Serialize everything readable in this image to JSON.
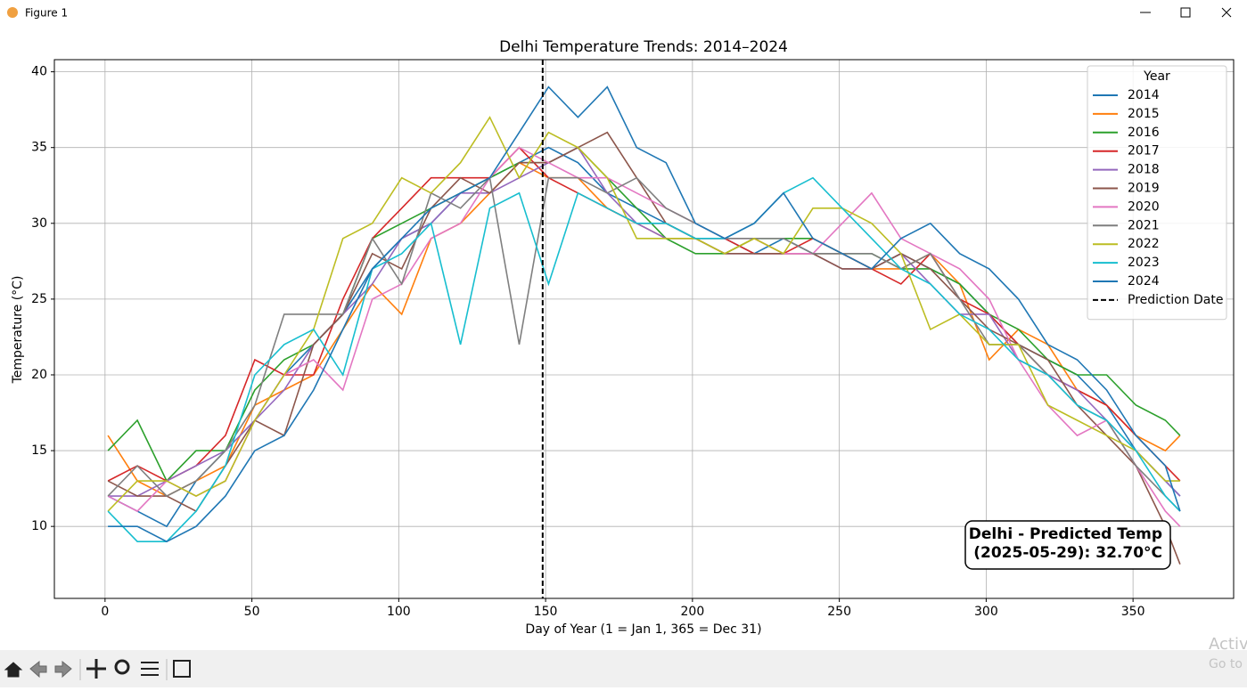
{
  "window": {
    "title": "Figure 1"
  },
  "watermark": [
    "Activ",
    "Go to S"
  ],
  "chart_data": {
    "type": "line",
    "title": "Delhi Temperature Trends: 2014–2024",
    "xlabel": "Day of Year (1 = Jan 1, 365 = Dec 31)",
    "ylabel": "Temperature (°C)",
    "x": [
      1,
      11,
      21,
      31,
      41,
      51,
      61,
      71,
      81,
      91,
      101,
      111,
      121,
      131,
      141,
      151,
      161,
      171,
      181,
      191,
      201,
      211,
      221,
      231,
      241,
      251,
      261,
      271,
      281,
      291,
      301,
      311,
      321,
      331,
      341,
      351,
      361,
      366
    ],
    "series": [
      {
        "name": "2014",
        "color": "#1f77b4",
        "values": [
          12,
          11,
          10,
          13,
          15,
          17,
          20,
          22,
          24,
          27,
          29,
          30,
          32,
          33,
          34,
          35,
          34,
          32,
          31,
          30,
          29,
          29,
          28,
          29,
          28,
          28,
          27,
          28,
          27,
          26,
          24,
          22,
          21,
          20,
          18,
          15,
          13,
          12
        ]
      },
      {
        "name": "2015",
        "color": "#ff7f0e",
        "values": [
          16,
          13,
          12,
          13,
          14,
          18,
          19,
          20,
          23,
          26,
          24,
          29,
          30,
          32,
          34,
          33,
          33,
          31,
          30,
          29,
          29,
          28,
          29,
          28,
          28,
          28,
          27,
          27,
          28,
          26,
          21,
          23,
          22,
          19,
          18,
          16,
          15,
          16
        ]
      },
      {
        "name": "2016",
        "color": "#2ca02c",
        "values": [
          15,
          17,
          13,
          15,
          15,
          19,
          21,
          22,
          24,
          29,
          30,
          31,
          32,
          33,
          34,
          34,
          35,
          33,
          31,
          29,
          28,
          28,
          29,
          29,
          29,
          28,
          28,
          27,
          27,
          26,
          24,
          23,
          21,
          20,
          20,
          18,
          17,
          16
        ]
      },
      {
        "name": "2017",
        "color": "#d62728",
        "values": [
          13,
          14,
          13,
          14,
          16,
          21,
          20,
          20,
          25,
          29,
          31,
          33,
          33,
          33,
          35,
          33,
          32,
          31,
          30,
          30,
          29,
          29,
          28,
          28,
          29,
          28,
          27,
          26,
          28,
          25,
          24,
          22,
          20,
          19,
          18,
          16,
          14,
          13
        ]
      },
      {
        "name": "2018",
        "color": "#9467bd",
        "values": [
          12,
          12,
          13,
          14,
          15,
          17,
          19,
          22,
          24,
          26,
          29,
          30,
          32,
          32,
          33,
          34,
          35,
          32,
          30,
          29,
          29,
          28,
          28,
          28,
          28,
          27,
          27,
          28,
          26,
          24,
          24,
          21,
          20,
          19,
          17,
          15,
          13,
          12
        ]
      },
      {
        "name": "2019",
        "color": "#8c564b",
        "values": [
          13,
          12,
          12,
          11,
          14,
          17,
          16,
          22,
          24,
          28,
          27,
          31,
          33,
          32,
          34,
          34,
          35,
          36,
          33,
          30,
          29,
          28,
          28,
          28,
          28,
          27,
          27,
          28,
          27,
          25,
          23,
          22,
          21,
          18,
          16,
          14,
          10,
          7.5
        ]
      },
      {
        "name": "2020",
        "color": "#e377c2",
        "values": [
          12,
          11,
          13,
          12,
          13,
          17,
          20,
          21,
          19,
          25,
          26,
          29,
          30,
          33,
          35,
          34,
          33,
          33,
          32,
          31,
          30,
          29,
          29,
          28,
          28,
          30,
          32,
          29,
          28,
          27,
          25,
          21,
          18,
          16,
          17,
          14,
          11,
          10
        ]
      },
      {
        "name": "2021",
        "color": "#7f7f7f",
        "values": [
          12,
          14,
          12,
          13,
          15,
          18,
          24,
          24,
          24,
          29,
          26,
          32,
          31,
          33,
          22,
          33,
          33,
          32,
          33,
          31,
          30,
          29,
          29,
          29,
          28,
          28,
          28,
          27,
          28,
          25,
          22,
          22,
          20,
          18,
          17,
          14,
          12,
          11
        ]
      },
      {
        "name": "2022",
        "color": "#bcbd22",
        "values": [
          11,
          13,
          13,
          12,
          13,
          17,
          20,
          23,
          29,
          30,
          33,
          32,
          34,
          37,
          33,
          36,
          35,
          33,
          29,
          29,
          29,
          28,
          29,
          28,
          31,
          31,
          30,
          28,
          23,
          24,
          22,
          22,
          18,
          17,
          16,
          15,
          13,
          13
        ]
      },
      {
        "name": "2023",
        "color": "#17becf",
        "values": [
          11,
          9,
          9,
          11,
          14,
          20,
          22,
          23,
          20,
          27,
          28,
          30,
          22,
          31,
          32,
          26,
          32,
          31,
          30,
          30,
          29,
          29,
          30,
          32,
          33,
          31,
          29,
          27,
          26,
          24,
          23,
          21,
          20,
          18,
          17,
          15,
          12,
          11
        ]
      },
      {
        "name": "2024",
        "color": "#1f77b4",
        "values": [
          10,
          10,
          9,
          10,
          12,
          15,
          16,
          19,
          23,
          27,
          29,
          31,
          32,
          33,
          36,
          39,
          37,
          39,
          35,
          34,
          30,
          29,
          30,
          32,
          29,
          28,
          27,
          29,
          30,
          28,
          27,
          25,
          22,
          21,
          19,
          16,
          14,
          11
        ]
      }
    ],
    "xlim": [
      -17.25,
      384.25
    ],
    "ylim": [
      5.25,
      40.8
    ],
    "xticks": [
      0,
      50,
      100,
      150,
      200,
      250,
      300,
      350
    ],
    "yticks": [
      10,
      15,
      20,
      25,
      30,
      35,
      40
    ],
    "grid": true,
    "legend_title": "Year",
    "legend_loc": "upper right",
    "prediction_line": {
      "x": 149,
      "label": "Prediction Date",
      "color": "#000000"
    },
    "annotation": {
      "lines": [
        "Delhi - Predicted Temp",
        "(2025-05-29): 32.70°C"
      ]
    }
  }
}
